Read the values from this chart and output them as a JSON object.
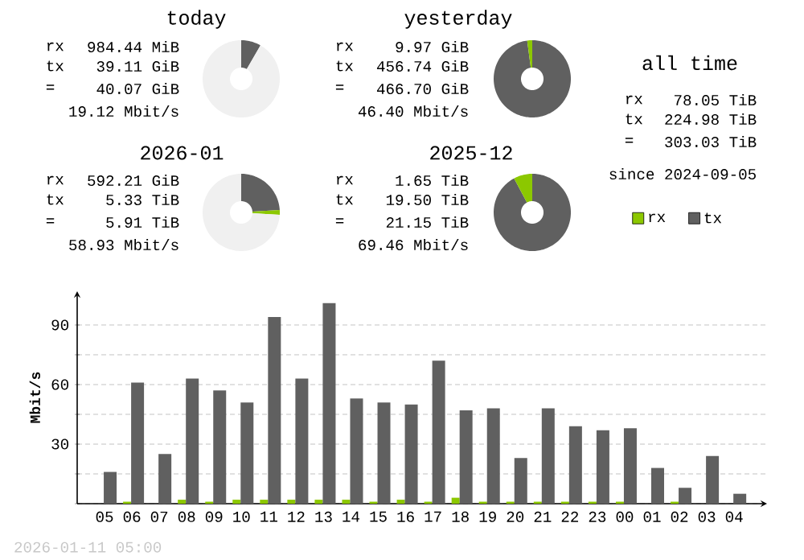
{
  "chart_data": [
    {
      "type": "donut",
      "title": "today",
      "categories": [
        null,
        null,
        null
      ],
      "values": [
        8.3,
        null,
        91.7
      ],
      "colors": [
        "#606060",
        "#8cc800",
        "#f0f0f0"
      ],
      "annotations": [
        "rx",
        "984.44 MiB",
        "tx",
        "39.11 GiB",
        "=",
        "40.07 GiB",
        "19.12 Mbit/s"
      ]
    },
    {
      "type": "donut",
      "title": "yesterday",
      "categories": [
        null,
        null
      ],
      "values": [
        97.9,
        2.1
      ],
      "colors": [
        "#606060",
        "#8cc800"
      ],
      "annotations": [
        "rx",
        "9.97 GiB",
        "tx",
        "456.74 GiB",
        "=",
        "466.70 GiB",
        "46.40 Mbit/s"
      ]
    },
    {
      "type": "other",
      "title": "all time",
      "annotations": [
        "rx",
        "78.05 TiB",
        "tx",
        "224.98 TiB",
        "=",
        "303.03 TiB",
        "since 2024-09-05"
      ]
    },
    {
      "type": "donut",
      "title": "2026-01",
      "categories": [
        null,
        null,
        null
      ],
      "values": [
        24,
        2,
        74
      ],
      "colors": [
        "#606060",
        "#8cc800",
        "#f0f0f0"
      ],
      "annotations": [
        "rx",
        "592.21 GiB",
        "tx",
        "5.33 TiB",
        "=",
        "5.91 TiB",
        "58.93 Mbit/s"
      ]
    },
    {
      "type": "donut",
      "title": "2025-12",
      "categories": [
        null,
        null
      ],
      "values": [
        92.2,
        7.8
      ],
      "colors": [
        "#606060",
        "#8cc800"
      ],
      "annotations": [
        "rx",
        "1.65 TiB",
        "tx",
        "19.50 TiB",
        "=",
        "21.15 TiB",
        "69.46 Mbit/s"
      ]
    },
    {
      "type": "bar",
      "ylabel": "Mbit/s",
      "categories": [
        "05",
        "06",
        "07",
        "08",
        "09",
        "10",
        "11",
        "12",
        "13",
        "14",
        "15",
        "16",
        "17",
        "18",
        "19",
        "20",
        "21",
        "22",
        "23",
        "00",
        "01",
        "02",
        "03",
        "04"
      ],
      "series": [
        {
          "name": "rx",
          "color": "#8cc800",
          "values": [
            0,
            1,
            0,
            2,
            1,
            2,
            2,
            2,
            2,
            2,
            1,
            2,
            1,
            3,
            1,
            1,
            1,
            1,
            1,
            1,
            0,
            1,
            0,
            0
          ]
        },
        {
          "name": "tx",
          "color": "#606060",
          "values": [
            16,
            61,
            25,
            63,
            57,
            51,
            94,
            63,
            101,
            53,
            51,
            50,
            72,
            47,
            48,
            23,
            48,
            39,
            37,
            38,
            18,
            8,
            24,
            5
          ]
        }
      ],
      "ylim": [
        0,
        107
      ],
      "yticks": [
        {
          "value": 0,
          "label": null
        },
        {
          "value": 15,
          "label": null
        },
        30,
        {
          "value": 45,
          "label": null
        },
        60,
        {
          "value": 75,
          "label": null
        },
        90
      ],
      "grid": "y",
      "legend": "top right",
      "annotations": [
        "2026-01-11 05:00"
      ]
    }
  ]
}
